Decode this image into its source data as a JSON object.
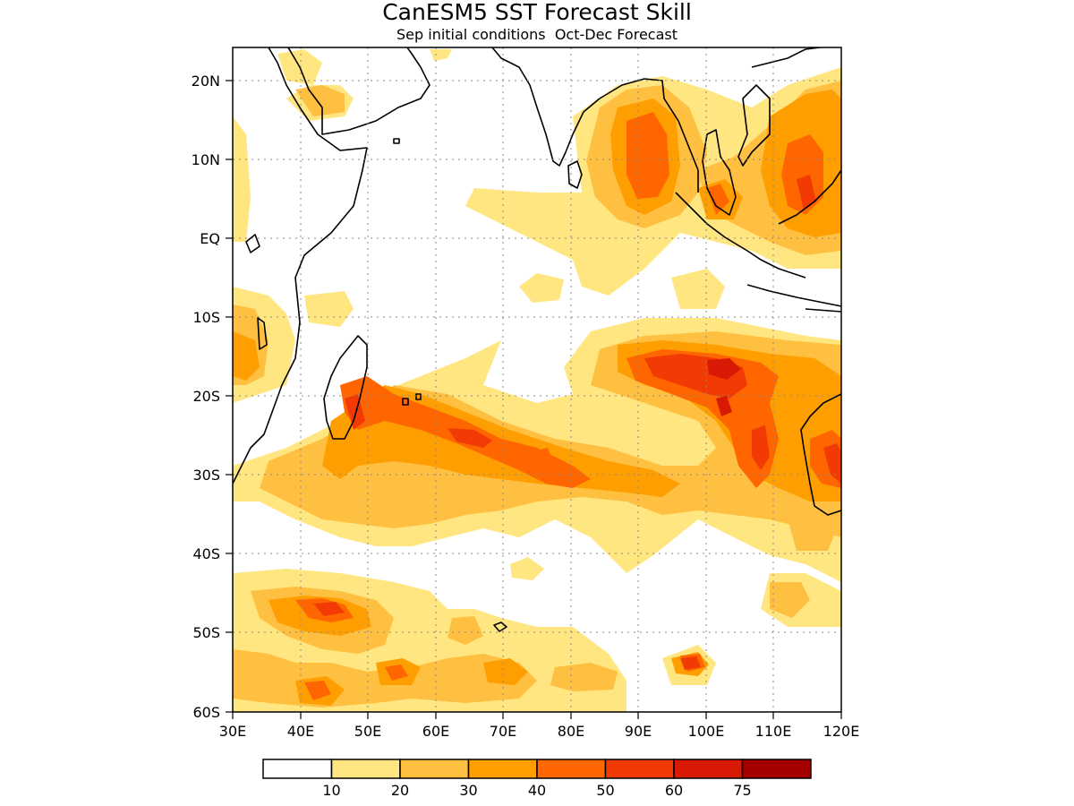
{
  "title": "CanESM5 SST Forecast Skill",
  "subtitle": "Sep initial conditions  Oct-Dec Forecast",
  "map": {
    "lon_range": [
      30,
      120
    ],
    "lat_range": [
      -60,
      24
    ],
    "x_ticks": [
      "30E",
      "40E",
      "50E",
      "60E",
      "70E",
      "80E",
      "90E",
      "100E",
      "110E",
      "120E"
    ],
    "y_ticks": [
      "20N",
      "10N",
      "EQ",
      "10S",
      "20S",
      "30S",
      "40S",
      "50S",
      "60S"
    ],
    "gridlines": "dotted"
  },
  "colorbar": {
    "labels": [
      "10",
      "20",
      "30",
      "40",
      "50",
      "60",
      "75"
    ],
    "colors": [
      "#ffffff",
      "#ffe680",
      "#ffbf40",
      "#ff9e00",
      "#ff6600",
      "#f23a05",
      "#d81a05",
      "#a50000"
    ]
  }
}
